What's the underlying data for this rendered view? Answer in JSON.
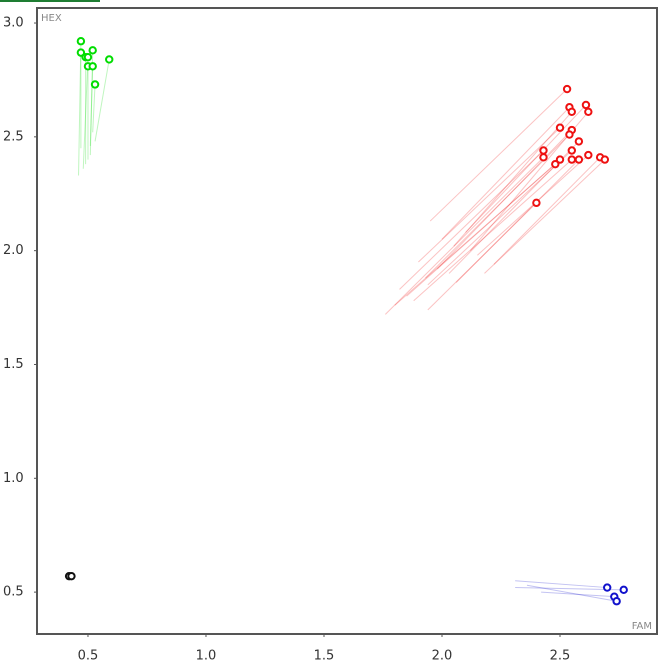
{
  "chart_data": {
    "type": "scatter",
    "x_label": "FAM",
    "y_label": "HEX",
    "xlim": [
      0.284,
      2.911
    ],
    "ylim": [
      0.316,
      3.066
    ],
    "xticks": [
      0.5,
      {
        "value": 1,
        "label": "1.0"
      },
      1.5,
      {
        "value": 2,
        "label": "2.0"
      },
      2.5
    ],
    "yticks": [
      0.5,
      {
        "value": 1,
        "label": "1.0"
      },
      1.5,
      {
        "value": 2,
        "label": "2.0"
      },
      2.5,
      {
        "value": 3,
        "label": "3.0"
      }
    ],
    "series": [
      {
        "color": "#00dd00",
        "x": [
          0.47,
          0.47,
          0.49,
          0.52,
          0.5,
          0.52,
          0.59,
          0.53,
          0.5
        ],
        "y": [
          2.92,
          2.87,
          2.85,
          2.88,
          2.81,
          2.81,
          2.84,
          2.73,
          2.85
        ],
        "trail_x": [
          0.46,
          0.47,
          0.49,
          0.51,
          0.5,
          0.51,
          0.53,
          0.52,
          0.48
        ],
        "trail_y": [
          2.33,
          2.45,
          2.38,
          2.42,
          2.4,
          2.46,
          2.48,
          2.52,
          2.36
        ]
      },
      {
        "color": "#ee1111",
        "x": [
          2.53,
          2.54,
          2.55,
          2.61,
          2.62,
          2.5,
          2.55,
          2.54,
          2.58,
          2.43,
          2.43,
          2.55,
          2.55,
          2.58,
          2.5,
          2.48,
          2.62,
          2.67,
          2.69,
          2.4
        ],
        "y": [
          2.71,
          2.63,
          2.61,
          2.64,
          2.61,
          2.54,
          2.53,
          2.51,
          2.48,
          2.44,
          2.41,
          2.44,
          2.4,
          2.4,
          2.4,
          2.38,
          2.42,
          2.41,
          2.4,
          2.21
        ],
        "trail_x": [
          1.95,
          2.0,
          2.05,
          2.1,
          2.12,
          1.9,
          1.98,
          1.93,
          2.03,
          1.82,
          1.76,
          1.94,
          1.88,
          2.06,
          1.85,
          1.8,
          2.15,
          2.22,
          2.18,
          1.94
        ],
        "trail_y": [
          2.13,
          2.05,
          2.02,
          2.08,
          2.0,
          1.95,
          1.92,
          1.88,
          1.9,
          1.83,
          1.72,
          1.85,
          1.78,
          1.86,
          1.8,
          1.76,
          1.98,
          1.94,
          1.9,
          1.74
        ]
      },
      {
        "color": "#1111cc",
        "x": [
          2.7,
          2.77,
          2.73,
          2.74
        ],
        "y": [
          0.52,
          0.51,
          0.48,
          0.46
        ],
        "trail_x": [
          2.31,
          2.31,
          2.42,
          2.36
        ],
        "trail_y": [
          0.55,
          0.52,
          0.5,
          0.53
        ]
      },
      {
        "color": "#111111",
        "x": [
          0.42,
          0.43
        ],
        "y": [
          0.57,
          0.57
        ]
      }
    ]
  }
}
